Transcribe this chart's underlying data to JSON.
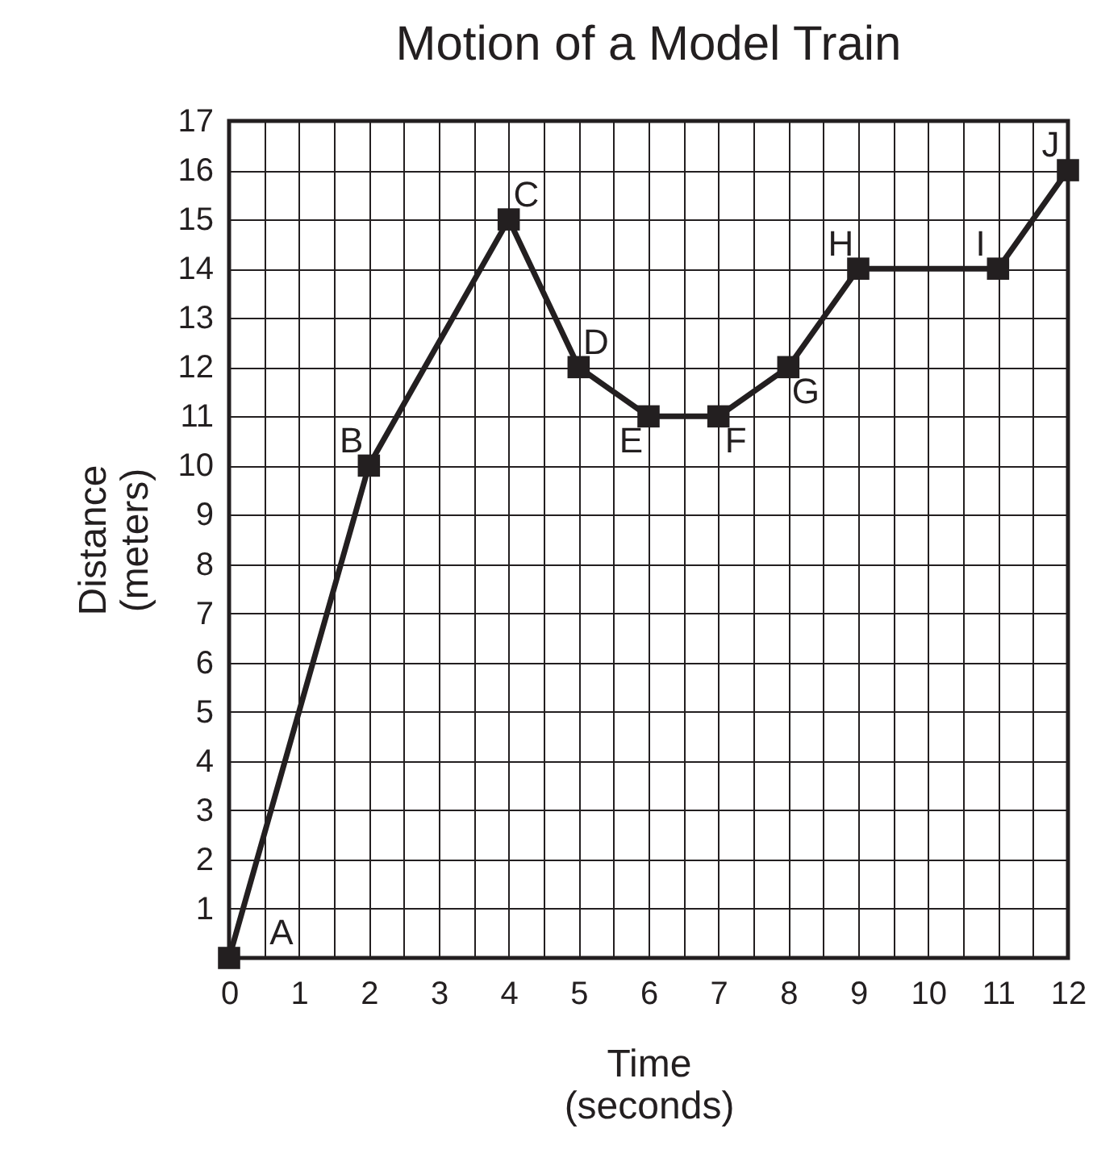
{
  "chart_data": {
    "type": "line",
    "title": "Motion of a Model Train",
    "xlabel": "Time\n(seconds)",
    "ylabel": "Distance\n(meters)",
    "x": [
      0,
      2,
      4,
      5,
      6,
      7,
      8,
      9,
      11,
      12
    ],
    "series": [
      {
        "color": "#231f20",
        "values": [
          0,
          10,
          15,
          12,
          11,
          11,
          12,
          14,
          14,
          16
        ]
      }
    ],
    "xlim": [
      0,
      12
    ],
    "ylim": [
      0,
      17
    ],
    "xticks": [
      0,
      1,
      2,
      3,
      4,
      5,
      6,
      7,
      8,
      9,
      10,
      11,
      12
    ],
    "yticks": [
      1,
      2,
      3,
      4,
      5,
      6,
      7,
      8,
      9,
      10,
      11,
      12,
      13,
      14,
      15,
      16,
      17
    ],
    "grid": true,
    "marker": "square",
    "line_style": "solid",
    "annotations": [
      {
        "text": "A",
        "x": 0,
        "y": 0
      },
      {
        "text": "B",
        "x": 2,
        "y": 10
      },
      {
        "text": "C",
        "x": 4,
        "y": 15
      },
      {
        "text": "D",
        "x": 5,
        "y": 12
      },
      {
        "text": "E",
        "x": 6,
        "y": 11
      },
      {
        "text": "F",
        "x": 7,
        "y": 11
      },
      {
        "text": "G",
        "x": 8,
        "y": 12
      },
      {
        "text": "H",
        "x": 9,
        "y": 14
      },
      {
        "text": "I",
        "x": 11,
        "y": 14
      },
      {
        "text": "J",
        "x": 12,
        "y": 16
      }
    ]
  }
}
